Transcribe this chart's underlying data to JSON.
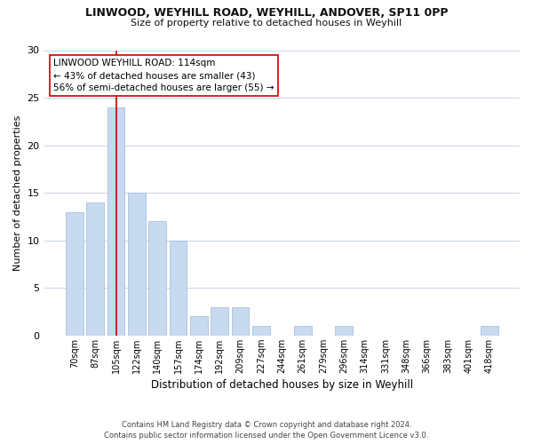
{
  "title": "LINWOOD, WEYHILL ROAD, WEYHILL, ANDOVER, SP11 0PP",
  "subtitle": "Size of property relative to detached houses in Weyhill",
  "xlabel": "Distribution of detached houses by size in Weyhill",
  "ylabel": "Number of detached properties",
  "bin_labels": [
    "70sqm",
    "87sqm",
    "105sqm",
    "122sqm",
    "140sqm",
    "157sqm",
    "174sqm",
    "192sqm",
    "209sqm",
    "227sqm",
    "244sqm",
    "261sqm",
    "279sqm",
    "296sqm",
    "314sqm",
    "331sqm",
    "348sqm",
    "366sqm",
    "383sqm",
    "401sqm",
    "418sqm"
  ],
  "bar_values": [
    13,
    14,
    24,
    15,
    12,
    10,
    2,
    3,
    3,
    1,
    0,
    1,
    0,
    1,
    0,
    0,
    0,
    0,
    0,
    0,
    1
  ],
  "bar_color": "#c8daf0",
  "bar_edge_color": "#a8c0e0",
  "reference_line_color": "#cc0000",
  "annotation_text": "LINWOOD WEYHILL ROAD: 114sqm\n← 43% of detached houses are smaller (43)\n56% of semi-detached houses are larger (55) →",
  "annotation_box_color": "#ffffff",
  "annotation_box_edge_color": "#cc0000",
  "ylim": [
    0,
    30
  ],
  "yticks": [
    0,
    5,
    10,
    15,
    20,
    25,
    30
  ],
  "footer_line1": "Contains HM Land Registry data © Crown copyright and database right 2024.",
  "footer_line2": "Contains public sector information licensed under the Open Government Licence v3.0.",
  "background_color": "#ffffff",
  "grid_color": "#cdd8e8"
}
